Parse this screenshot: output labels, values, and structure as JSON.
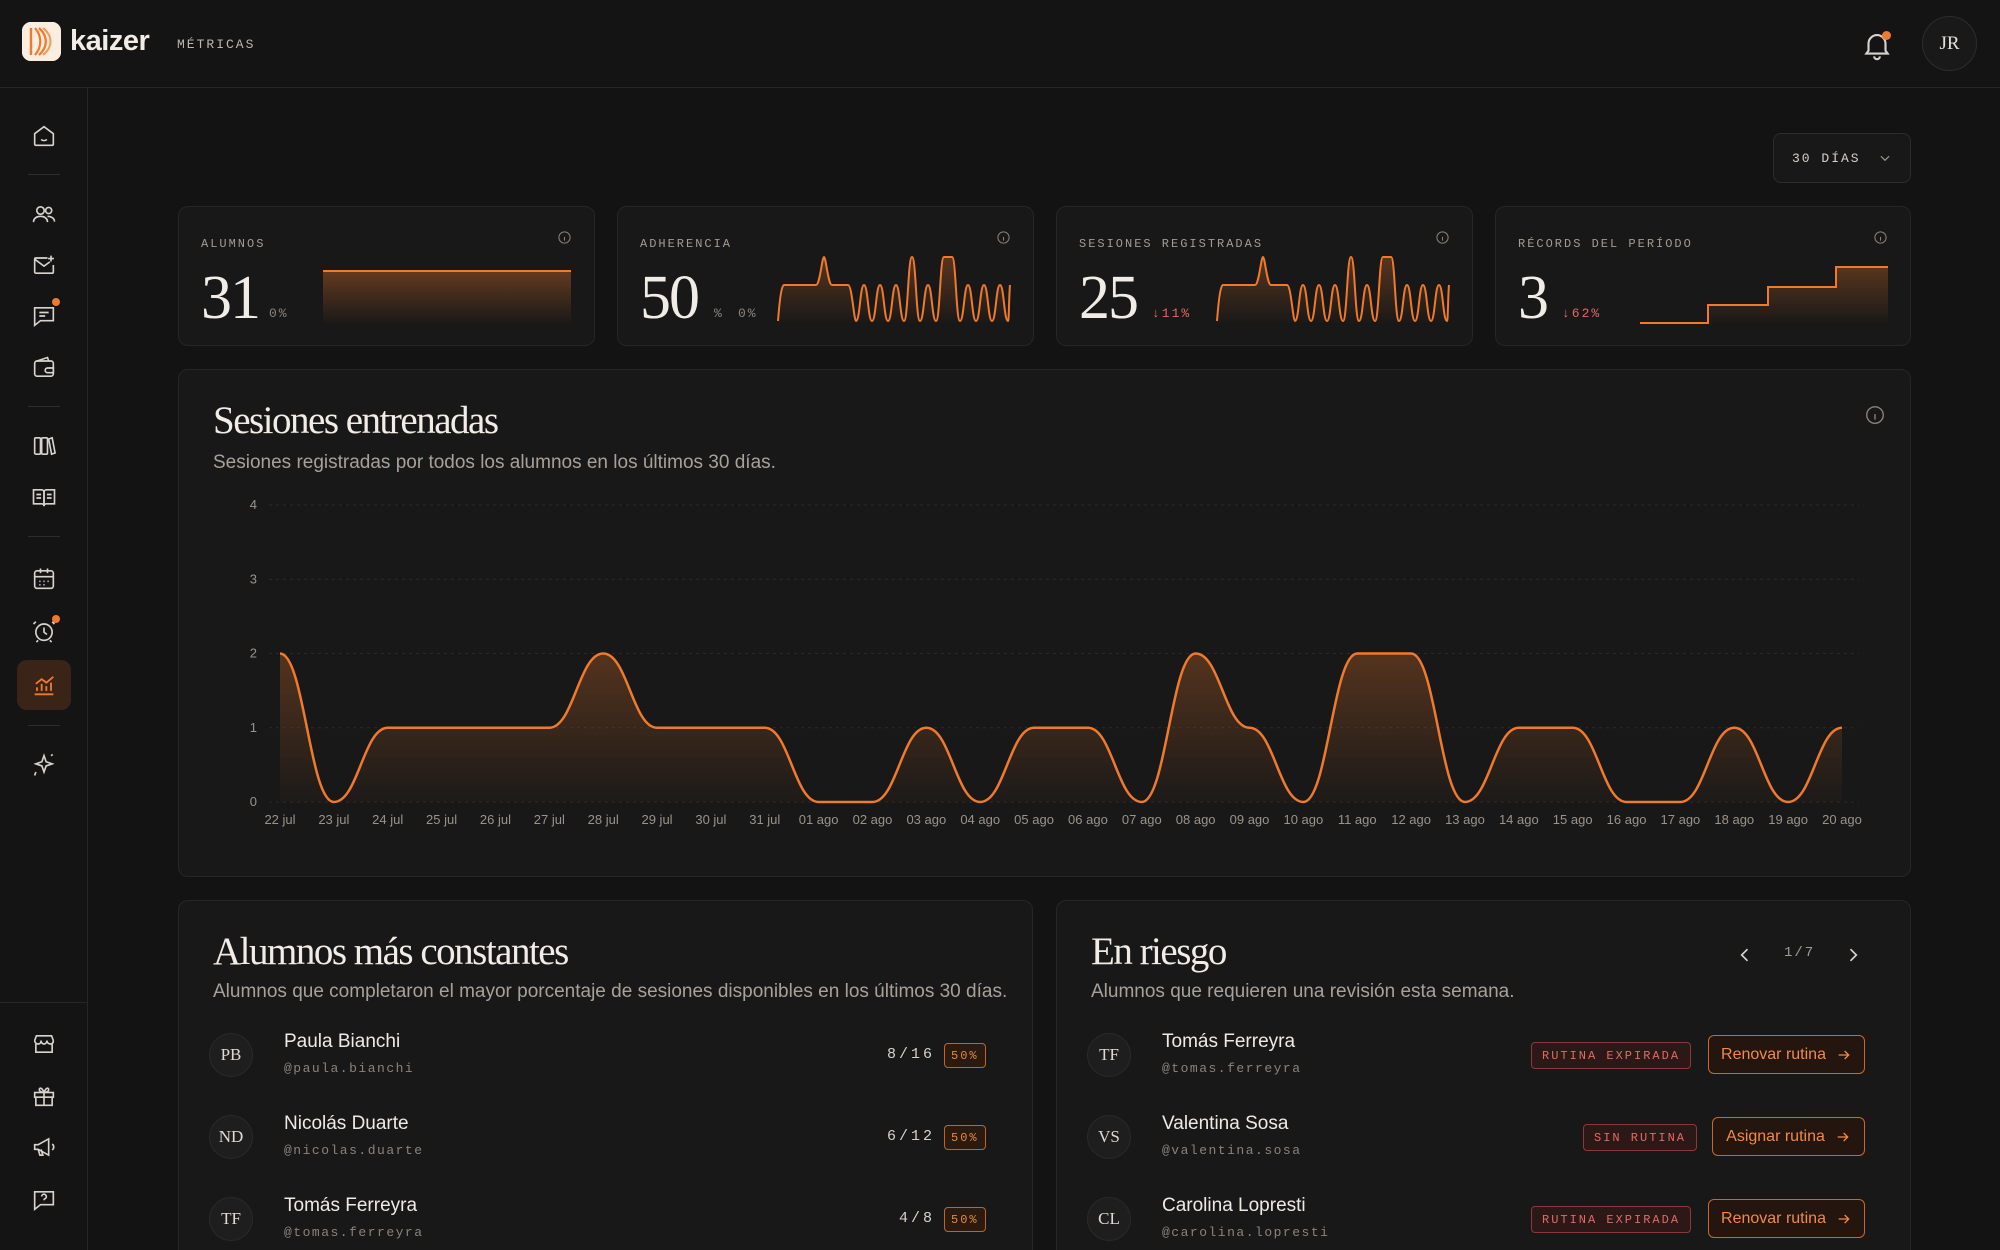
{
  "app": {
    "brand": "kaizer",
    "breadcrumb": "MÉTRICAS",
    "user_initials": "JR"
  },
  "colors": {
    "accent": "#f07a2c",
    "danger": "#e06b64",
    "background": "#131313",
    "card": "#181818"
  },
  "sidebar": {
    "items": [
      {
        "name": "home-icon",
        "active": false
      },
      {
        "name": "users-icon",
        "active": false
      },
      {
        "name": "mail-icon",
        "active": false
      },
      {
        "name": "chat-icon",
        "active": false,
        "notification": true
      },
      {
        "name": "wallet-icon",
        "active": false
      },
      {
        "name": "books-icon",
        "active": false
      },
      {
        "name": "open-book-icon",
        "active": false
      },
      {
        "name": "calendar-icon",
        "active": false
      },
      {
        "name": "alarm-clock-icon",
        "active": false,
        "notification": true
      },
      {
        "name": "chart-icon",
        "active": true
      },
      {
        "name": "sparkles-icon",
        "active": false
      },
      {
        "name": "store-icon",
        "active": false
      },
      {
        "name": "gift-icon",
        "active": false
      },
      {
        "name": "megaphone-icon",
        "active": false
      },
      {
        "name": "help-icon",
        "active": false
      }
    ]
  },
  "range_select": {
    "value": "30 DÍAS"
  },
  "kpis": [
    {
      "label": "ALUMNOS",
      "value": "31",
      "unit": "",
      "delta": "0%",
      "delta_trend": "neutral"
    },
    {
      "label": "ADHERENCIA",
      "value": "50",
      "unit": "%",
      "delta": "0%",
      "delta_trend": "neutral"
    },
    {
      "label": "SESIONES REGISTRADAS",
      "value": "25",
      "unit": "",
      "delta": "↓11%",
      "delta_trend": "down"
    },
    {
      "label": "RÉCORDS DEL PERÍODO",
      "value": "3",
      "unit": "",
      "delta": "↓62%",
      "delta_trend": "down"
    }
  ],
  "sessions_chart": {
    "title": "Sesiones entrenadas",
    "subtitle": "Sesiones registradas por todos los alumnos en los últimos 30 días."
  },
  "chart_data": {
    "type": "area",
    "title": "Sesiones entrenadas",
    "x": [
      "22 jul",
      "23 jul",
      "24 jul",
      "25 jul",
      "26 jul",
      "27 jul",
      "28 jul",
      "29 jul",
      "30 jul",
      "31 jul",
      "01 ago",
      "02 ago",
      "03 ago",
      "04 ago",
      "05 ago",
      "06 ago",
      "07 ago",
      "08 ago",
      "09 ago",
      "10 ago",
      "11 ago",
      "12 ago",
      "13 ago",
      "14 ago",
      "15 ago",
      "16 ago",
      "17 ago",
      "18 ago",
      "19 ago",
      "20 ago"
    ],
    "values": [
      2,
      0,
      1,
      1,
      1,
      1,
      2,
      1,
      1,
      1,
      0,
      0,
      1,
      0,
      1,
      1,
      0,
      2,
      1,
      0,
      2,
      2,
      0,
      1,
      1,
      0,
      0,
      1,
      0,
      1
    ],
    "ylim": [
      0,
      4
    ],
    "yticks": [
      0,
      1,
      2,
      3,
      4
    ],
    "grid": true,
    "xlabel": "",
    "ylabel": ""
  },
  "top_students": {
    "title": "Alumnos más constantes",
    "subtitle": "Alumnos que completaron el mayor porcentaje de sesiones disponibles en los últimos 30 días.",
    "rows": [
      {
        "initials": "PB",
        "name": "Paula Bianchi",
        "handle": "@paula.bianchi",
        "ratio": "8/16",
        "percent": "50%"
      },
      {
        "initials": "ND",
        "name": "Nicolás Duarte",
        "handle": "@nicolas.duarte",
        "ratio": "6/12",
        "percent": "50%"
      },
      {
        "initials": "TF",
        "name": "Tomás Ferreyra",
        "handle": "@tomas.ferreyra",
        "ratio": "4/8",
        "percent": "50%"
      }
    ]
  },
  "at_risk": {
    "title": "En riesgo",
    "subtitle": "Alumnos que requieren una revisión esta semana.",
    "pager": "1/7",
    "rows": [
      {
        "initials": "TF",
        "name": "Tomás Ferreyra",
        "handle": "@tomas.ferreyra",
        "badge": "RUTINA EXPIRADA",
        "action": "Renovar rutina"
      },
      {
        "initials": "VS",
        "name": "Valentina Sosa",
        "handle": "@valentina.sosa",
        "badge": "SIN RUTINA",
        "action": "Asignar rutina"
      },
      {
        "initials": "CL",
        "name": "Carolina Lopresti",
        "handle": "@carolina.lopresti",
        "badge": "RUTINA EXPIRADA",
        "action": "Renovar rutina"
      }
    ]
  }
}
